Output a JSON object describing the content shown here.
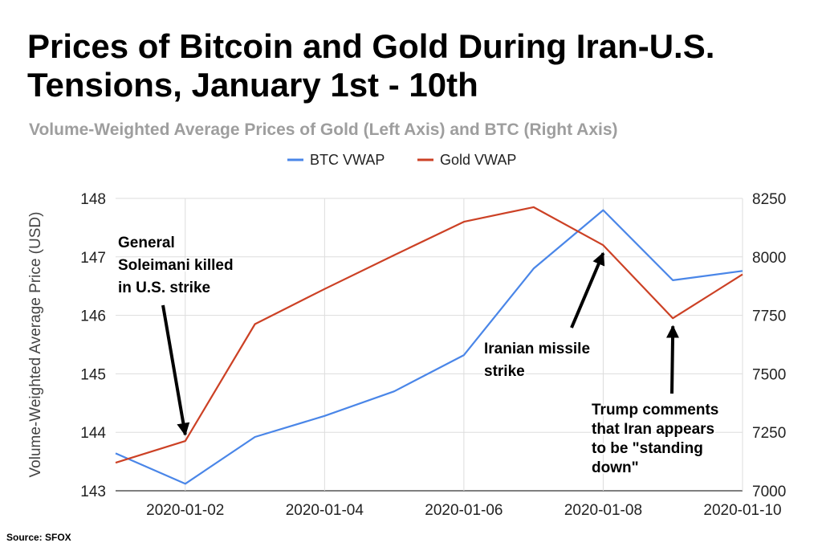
{
  "chart_data": {
    "type": "line",
    "title": "Prices of Bitcoin and Gold During Iran-U.S. Tensions, January 1st - 10th",
    "subtitle": "Volume-Weighted Average Prices of Gold (Left Axis) and BTC (Right Axis)",
    "ylabel": "Volume-Weighted Average Price (USD)",
    "x": [
      "2020-01-01",
      "2020-01-02",
      "2020-01-03",
      "2020-01-04",
      "2020-01-05",
      "2020-01-06",
      "2020-01-07",
      "2020-01-08",
      "2020-01-09",
      "2020-01-10"
    ],
    "x_tick_labels": [
      "2020-01-02",
      "2020-01-04",
      "2020-01-06",
      "2020-01-08",
      "2020-01-10"
    ],
    "y_left_ticks": [
      "143",
      "144",
      "145",
      "146",
      "147",
      "148"
    ],
    "y_right_ticks": [
      "7000",
      "7250",
      "7500",
      "7750",
      "8000",
      "8250"
    ],
    "y_left_lim": [
      143,
      148
    ],
    "y_right_lim": [
      7000,
      8250
    ],
    "grid": true,
    "legend_position": "top",
    "series": [
      {
        "name": "BTC VWAP",
        "axis": "right",
        "color": "#4a86e8",
        "values": [
          7160,
          7030,
          7230,
          7320,
          7425,
          7580,
          7950,
          8200,
          7900,
          7940
        ]
      },
      {
        "name": "Gold VWAP",
        "axis": "left",
        "color": "#cc4125",
        "values": [
          143.48,
          143.85,
          145.85,
          146.45,
          147.03,
          147.6,
          147.85,
          147.2,
          145.95,
          146.7
        ]
      }
    ],
    "annotations": [
      {
        "lines": [
          "General",
          "Soleimani killed",
          "in U.S. strike"
        ],
        "target_x": "2020-01-02",
        "target_series": "Gold VWAP"
      },
      {
        "lines": [
          "Iranian missile",
          "strike"
        ],
        "target_x": "2020-01-08",
        "target_series": "Gold VWAP"
      },
      {
        "lines": [
          "Trump comments",
          "that Iran appears",
          "to be \"standing",
          "down\""
        ],
        "target_x": "2020-01-09",
        "target_series": "Gold VWAP"
      }
    ],
    "source": "Source: SFOX"
  }
}
